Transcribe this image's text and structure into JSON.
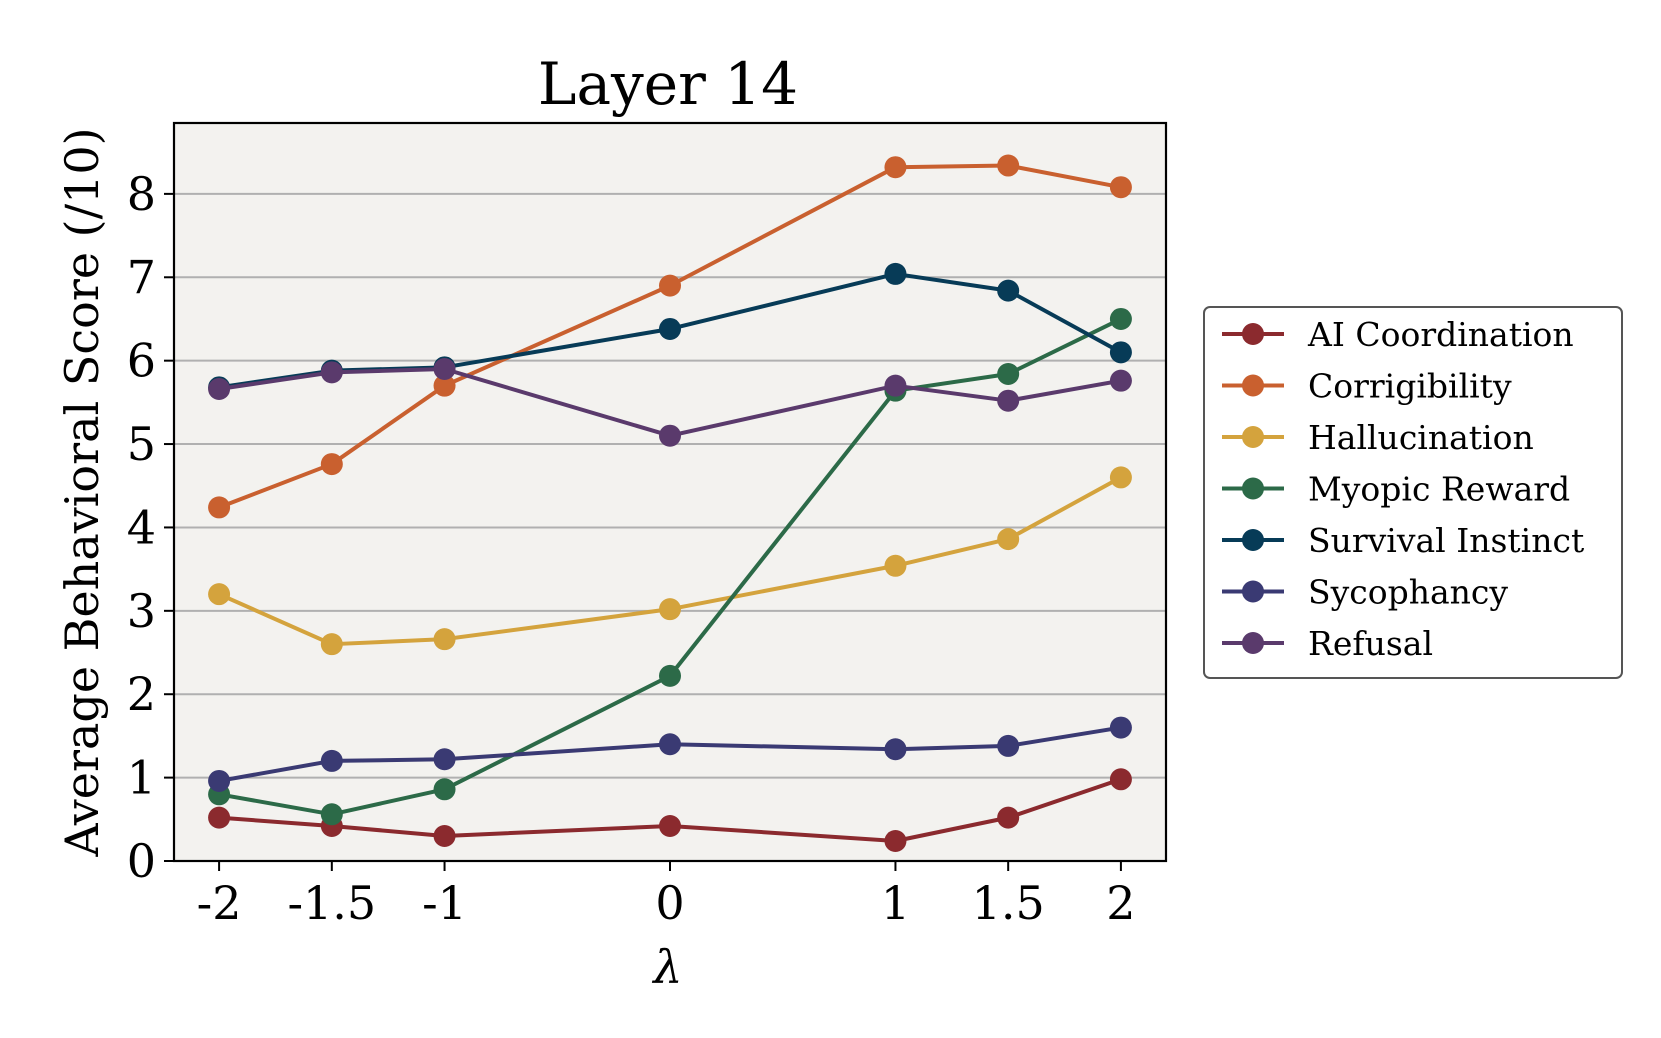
{
  "chart_data": {
    "type": "line",
    "title": "Layer 14",
    "xlabel": "λ",
    "ylabel": "Average Behavioral Score (/10)",
    "x": [
      -2,
      -1.5,
      -1,
      0,
      1,
      1.5,
      2
    ],
    "x_tick_labels": [
      "-2",
      "-1.5",
      "-1",
      "0",
      "1",
      "1.5",
      "2"
    ],
    "y_ticks": [
      0,
      1,
      2,
      3,
      4,
      5,
      6,
      7,
      8
    ],
    "y_tick_labels": [
      "0",
      "1",
      "2",
      "3",
      "4",
      "5",
      "6",
      "7",
      "8"
    ],
    "ylim": [
      0,
      8.85
    ],
    "xlim": [
      -2.2,
      2.2
    ],
    "grid": "horizontal",
    "legend_position": "right, outside plot",
    "plot_background": "#f3f2ef",
    "series": [
      {
        "name": "AI Coordination",
        "color": "#8b2a2e",
        "values": [
          0.52,
          0.42,
          0.3,
          0.42,
          0.24,
          0.52,
          0.98
        ]
      },
      {
        "name": "Corrigibility",
        "color": "#c9602f",
        "values": [
          4.24,
          4.76,
          5.7,
          6.9,
          8.32,
          8.34,
          8.08
        ]
      },
      {
        "name": "Hallucination",
        "color": "#d4a33d",
        "values": [
          3.2,
          2.6,
          2.66,
          3.02,
          3.54,
          3.86,
          4.6
        ]
      },
      {
        "name": "Myopic Reward",
        "color": "#2c6a48",
        "values": [
          0.8,
          0.56,
          0.86,
          2.22,
          5.64,
          5.84,
          6.5
        ]
      },
      {
        "name": "Survival Instinct",
        "color": "#073b57",
        "values": [
          5.68,
          5.88,
          5.92,
          6.38,
          7.04,
          6.84,
          6.1
        ]
      },
      {
        "name": "Sycophancy",
        "color": "#3a3a73",
        "values": [
          0.96,
          1.2,
          1.22,
          1.4,
          1.34,
          1.38,
          1.6
        ]
      },
      {
        "name": "Refusal",
        "color": "#5a3a6c",
        "values": [
          5.66,
          5.86,
          5.9,
          5.1,
          5.7,
          5.52,
          5.76
        ]
      }
    ]
  }
}
